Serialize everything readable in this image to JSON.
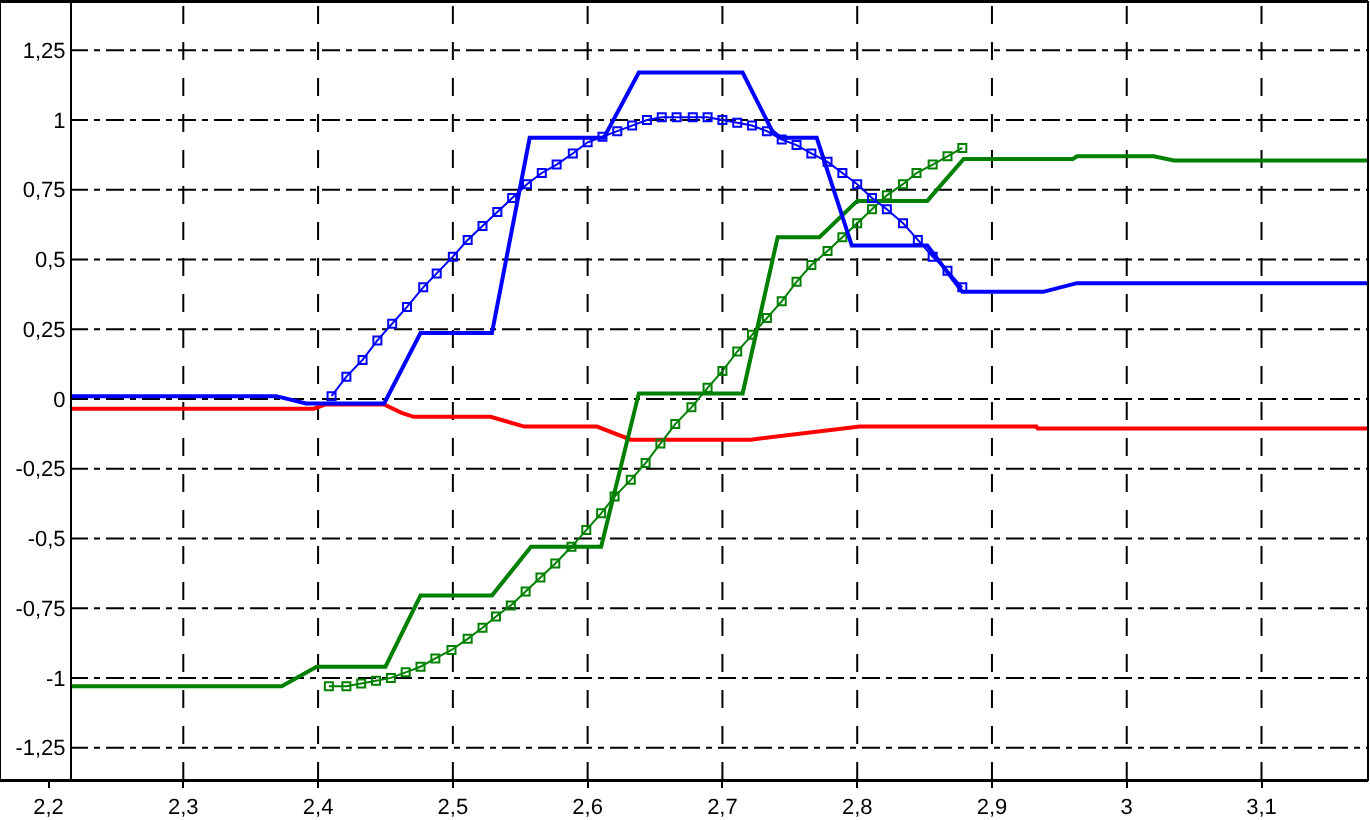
{
  "chart_data": {
    "type": "line",
    "xlim": [
      2.164,
      3.179
    ],
    "ylim": [
      -1.366,
      1.423
    ],
    "xticks": [
      {
        "value": 2.2,
        "label": "2,2"
      },
      {
        "value": 2.3,
        "label": "2,3"
      },
      {
        "value": 2.4,
        "label": "2,4"
      },
      {
        "value": 2.5,
        "label": "2,5"
      },
      {
        "value": 2.6,
        "label": "2,6"
      },
      {
        "value": 2.7,
        "label": "2,7"
      },
      {
        "value": 2.8,
        "label": "2,8"
      },
      {
        "value": 2.9,
        "label": "2,9"
      },
      3,
      {
        "value": 3.1,
        "label": "3,1"
      }
    ],
    "yticks": [
      {
        "value": -1.25,
        "label": "-1,25"
      },
      -1,
      {
        "value": -0.75,
        "label": "-0,75"
      },
      {
        "value": -0.5,
        "label": "-0,5"
      },
      {
        "value": -0.25,
        "label": "-0,25"
      },
      0,
      {
        "value": 0.25,
        "label": "0,25"
      },
      {
        "value": 0.5,
        "label": "0,5"
      },
      {
        "value": 0.75,
        "label": "0,75"
      },
      1,
      {
        "value": 1.25,
        "label": "1,25"
      }
    ],
    "grid": true,
    "series": [
      {
        "color": "#ff0000",
        "x": [
          2.216,
          2.397,
          2.405,
          2.449,
          2.462,
          2.471,
          2.528,
          2.553,
          2.607,
          2.632,
          2.721,
          2.802,
          2.933,
          2.934,
          3.179
        ],
        "values": [
          -0.035,
          -0.035,
          -0.02,
          -0.02,
          -0.05,
          -0.064,
          -0.064,
          -0.099,
          -0.099,
          -0.146,
          -0.146,
          -0.099,
          -0.099,
          -0.106,
          -0.106
        ]
      },
      {
        "color": "#008000",
        "x": [
          2.216,
          2.373,
          2.399,
          2.45,
          2.476,
          2.529,
          2.558,
          2.61,
          2.638,
          2.715,
          2.741,
          2.772,
          2.8,
          2.852,
          2.879,
          2.96,
          2.963,
          3.02,
          3.035,
          3.179
        ],
        "values": [
          -1.03,
          -1.03,
          -0.96,
          -0.96,
          -0.705,
          -0.705,
          -0.53,
          -0.53,
          0.02,
          0.02,
          0.58,
          0.58,
          0.71,
          0.71,
          0.86,
          0.86,
          0.87,
          0.87,
          0.855,
          0.855
        ]
      },
      {
        "color": "#008000",
        "marker": "square",
        "x": [
          2.408,
          2.421,
          2.432,
          2.443,
          2.454,
          2.465,
          2.476,
          2.487,
          2.499,
          2.511,
          2.522,
          2.532,
          2.543,
          2.554,
          2.565,
          2.576,
          2.588,
          2.599,
          2.61,
          2.62,
          2.632,
          2.643,
          2.654,
          2.665,
          2.677,
          2.689,
          2.7,
          2.711,
          2.722,
          2.733,
          2.744,
          2.755,
          2.766,
          2.778,
          2.789,
          2.8,
          2.811,
          2.822,
          2.834,
          2.844,
          2.856,
          2.867,
          2.878
        ],
        "values": [
          -1.03,
          -1.03,
          -1.02,
          -1.01,
          -1.0,
          -0.98,
          -0.96,
          -0.93,
          -0.9,
          -0.86,
          -0.82,
          -0.78,
          -0.74,
          -0.69,
          -0.64,
          -0.59,
          -0.53,
          -0.47,
          -0.41,
          -0.35,
          -0.29,
          -0.23,
          -0.16,
          -0.09,
          -0.03,
          0.04,
          0.1,
          0.17,
          0.23,
          0.29,
          0.35,
          0.42,
          0.48,
          0.53,
          0.58,
          0.63,
          0.68,
          0.73,
          0.77,
          0.81,
          0.84,
          0.87,
          0.9
        ]
      },
      {
        "color": "#0000ff",
        "x": [
          2.216,
          2.369,
          2.391,
          2.449,
          2.476,
          2.529,
          2.557,
          2.612,
          2.638,
          2.715,
          2.737,
          2.743,
          2.77,
          2.796,
          2.852,
          2.878,
          2.938,
          2.963,
          3.179
        ],
        "values": [
          0.01,
          0.01,
          -0.016,
          -0.016,
          0.236,
          0.236,
          0.936,
          0.936,
          1.17,
          1.17,
          0.96,
          0.936,
          0.936,
          0.55,
          0.55,
          0.384,
          0.384,
          0.415,
          0.415
        ]
      },
      {
        "color": "#0000ff",
        "marker": "square",
        "x": [
          2.41,
          2.421,
          2.433,
          2.444,
          2.455,
          2.466,
          2.478,
          2.488,
          2.5,
          2.511,
          2.522,
          2.533,
          2.544,
          2.555,
          2.566,
          2.577,
          2.589,
          2.6,
          2.611,
          2.622,
          2.633,
          2.644,
          2.655,
          2.666,
          2.678,
          2.689,
          2.7,
          2.711,
          2.722,
          2.733,
          2.744,
          2.755,
          2.766,
          2.778,
          2.789,
          2.8,
          2.811,
          2.822,
          2.834,
          2.845,
          2.856,
          2.867,
          2.878
        ],
        "values": [
          0.01,
          0.08,
          0.14,
          0.21,
          0.27,
          0.33,
          0.4,
          0.45,
          0.51,
          0.57,
          0.62,
          0.67,
          0.72,
          0.77,
          0.81,
          0.84,
          0.88,
          0.92,
          0.94,
          0.96,
          0.98,
          1.0,
          1.01,
          1.01,
          1.01,
          1.01,
          1.0,
          0.99,
          0.98,
          0.96,
          0.93,
          0.91,
          0.88,
          0.85,
          0.81,
          0.77,
          0.72,
          0.68,
          0.63,
          0.57,
          0.51,
          0.46,
          0.4
        ]
      }
    ]
  }
}
